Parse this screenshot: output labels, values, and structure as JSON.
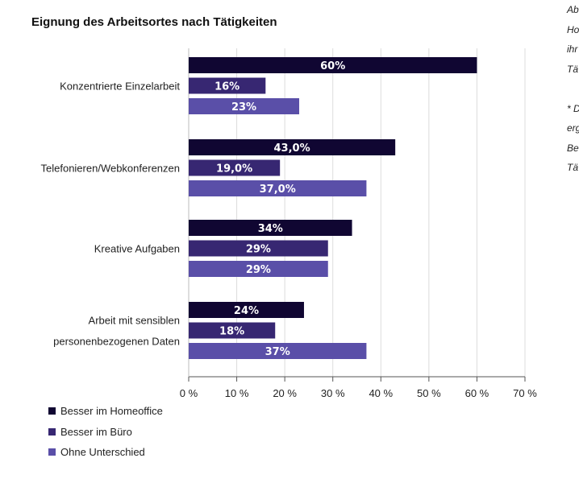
{
  "chart_data": {
    "type": "bar",
    "orientation": "horizontal",
    "title": "Eignung des Arbeitsortes nach Tätigkeiten",
    "categories": [
      "Konzentrierte Einzelarbeit",
      "Telefonieren/Webkonferenzen",
      "Kreative Aufgaben",
      "Arbeit mit sensiblen personenbezogenen Daten"
    ],
    "category_lines": [
      [
        "Konzentrierte Einzelarbeit"
      ],
      [
        "Telefonieren/Webkonferenzen"
      ],
      [
        "Kreative Aufgaben"
      ],
      [
        "Arbeit mit sensiblen",
        "personenbezogenen Daten"
      ]
    ],
    "series": [
      {
        "name": "Besser im Homeoffice",
        "color": "#100632",
        "values": [
          60,
          43,
          34,
          24
        ],
        "labels": [
          "60%",
          "43,0%",
          "34%",
          "24%"
        ]
      },
      {
        "name": "Besser im Büro",
        "color": "#372772",
        "values": [
          16,
          19,
          29,
          18
        ],
        "labels": [
          "16%",
          "19,0%",
          "29%",
          "18%"
        ]
      },
      {
        "name": "Ohne Unterschied",
        "color": "#5a4fa8",
        "values": [
          23,
          37,
          29,
          37
        ],
        "labels": [
          "23%",
          "37,0%",
          "29%",
          "37%"
        ]
      }
    ],
    "xlim": [
      0,
      70
    ],
    "xticks": [
      "0 %",
      "10 %",
      "20 %",
      "30 %",
      "40 %",
      "50 %",
      "60 %",
      "70 %"
    ],
    "grid": true,
    "legend": "bottom-left"
  },
  "side_text": [
    "Ab",
    "Ho",
    "ihr",
    "Tä",
    "",
    "* D",
    "erg",
    "Be",
    "Tä"
  ]
}
